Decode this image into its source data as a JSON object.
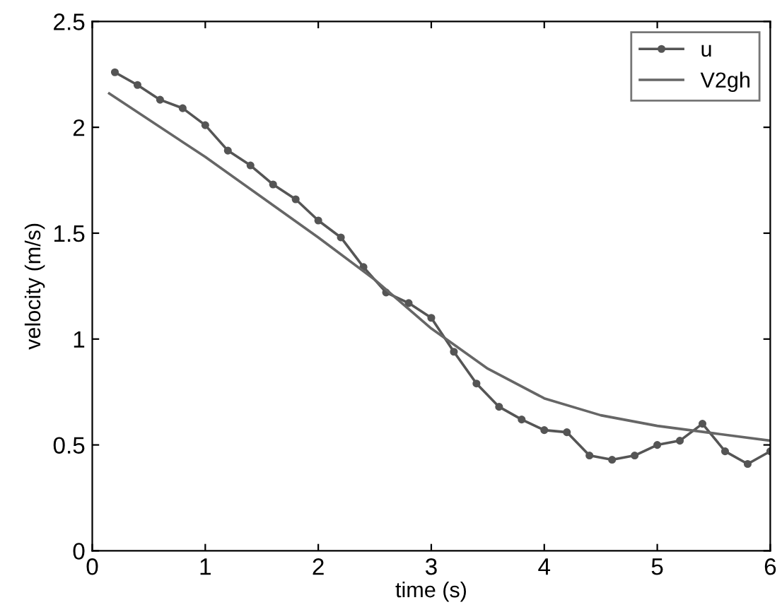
{
  "chart_data": {
    "type": "line",
    "xlabel": "time (s)",
    "ylabel": "velocity (m/s)",
    "xlim": [
      0,
      6
    ],
    "ylim": [
      0,
      2.5
    ],
    "xticks": [
      0,
      1,
      2,
      3,
      4,
      5,
      6
    ],
    "yticks": [
      0,
      0.5,
      1,
      1.5,
      2,
      2.5
    ],
    "grid": false,
    "legend": "top right",
    "series": [
      {
        "name": "u",
        "color": "#555555",
        "marker": "circle",
        "x": [
          0.2,
          0.4,
          0.6,
          0.8,
          1.0,
          1.2,
          1.4,
          1.6,
          1.8,
          2.0,
          2.2,
          2.4,
          2.6,
          2.8,
          3.0,
          3.2,
          3.4,
          3.6,
          3.8,
          4.0,
          4.2,
          4.4,
          4.6,
          4.8,
          5.0,
          5.2,
          5.4,
          5.6,
          5.8,
          6.0
        ],
        "values": [
          2.26,
          2.2,
          2.13,
          2.09,
          2.01,
          1.89,
          1.82,
          1.73,
          1.66,
          1.56,
          1.48,
          1.34,
          1.22,
          1.17,
          1.1,
          0.94,
          0.79,
          0.68,
          0.62,
          0.57,
          0.56,
          0.45,
          0.43,
          0.45,
          0.5,
          0.52,
          0.6,
          0.47,
          0.41,
          0.47
        ]
      },
      {
        "name": "V2gh",
        "color": "#666666",
        "marker": "none",
        "x": [
          0.15,
          1.0,
          1.5,
          2.0,
          2.5,
          3.0,
          3.5,
          4.0,
          4.5,
          5.0,
          5.5,
          6.0
        ],
        "values": [
          2.16,
          1.86,
          1.67,
          1.48,
          1.28,
          1.05,
          0.86,
          0.72,
          0.64,
          0.59,
          0.555,
          0.52
        ]
      }
    ]
  }
}
